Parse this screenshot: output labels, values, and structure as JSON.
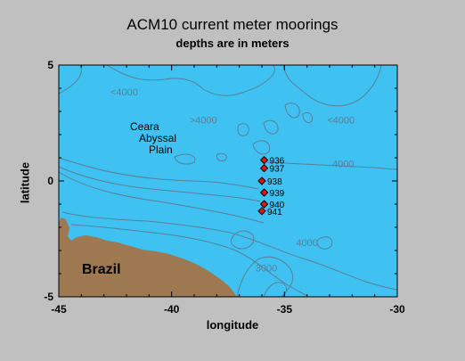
{
  "title": "ACM10 current meter moorings",
  "subtitle": "depths are in meters",
  "x_axis": {
    "label": "longitude",
    "ticks": [
      "-45",
      "-40",
      "-35",
      "-30"
    ]
  },
  "y_axis": {
    "label": "latitude",
    "ticks": [
      "5",
      "0",
      "-5"
    ]
  },
  "colors": {
    "ocean": "#3fc2f2",
    "land": "#9e7850",
    "contour": "#5a7f98",
    "mooring": "#d81818",
    "background": "#c0c0c0"
  },
  "region": {
    "lon_min": -45,
    "lon_max": -30,
    "lat_min": -5,
    "lat_max": 5
  },
  "land_label": "Brazil",
  "feature_label": [
    "Ceara",
    "Abyssal",
    "Plain"
  ],
  "depth_labels": [
    {
      "text": "<4000",
      "lon": -42.1,
      "lat": 3.8
    },
    {
      "text": ">4000",
      "lon": -38.6,
      "lat": 2.6
    },
    {
      "text": "<4000",
      "lon": -32.5,
      "lat": 2.6
    },
    {
      "text": "4000",
      "lon": -32.4,
      "lat": 0.7
    },
    {
      "text": "4000",
      "lon": -34.0,
      "lat": -2.7
    },
    {
      "text": "3000",
      "lon": -35.8,
      "lat": -3.8
    }
  ],
  "moorings": [
    {
      "id": "936",
      "lon": -35.9,
      "lat": 0.9
    },
    {
      "id": "937",
      "lon": -35.9,
      "lat": 0.55
    },
    {
      "id": "938",
      "lon": -36.0,
      "lat": 0.0
    },
    {
      "id": "939",
      "lon": -35.9,
      "lat": -0.5
    },
    {
      "id": "940",
      "lon": -35.9,
      "lat": -1.0
    },
    {
      "id": "941",
      "lon": -36.0,
      "lat": -1.3
    }
  ]
}
